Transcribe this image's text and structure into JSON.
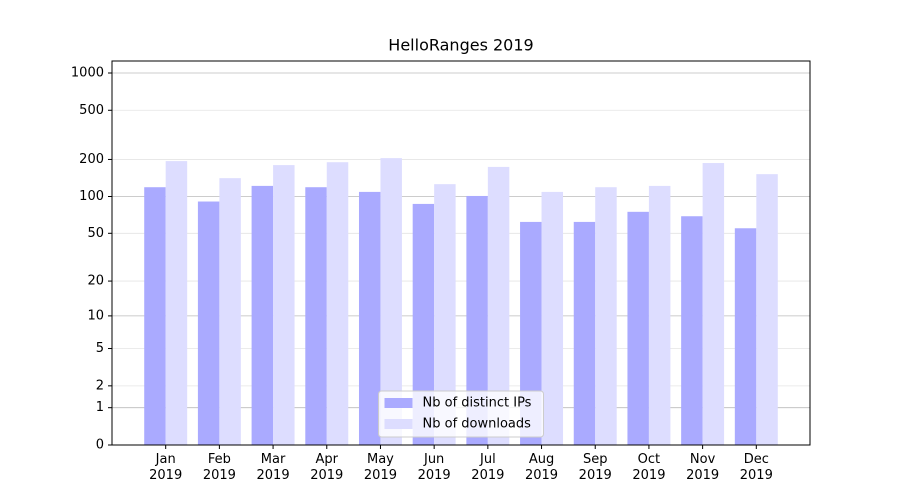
{
  "chart_data": {
    "type": "bar",
    "title": "HelloRanges 2019",
    "yscale": "log1p",
    "categories": [
      "Jan\n2019",
      "Feb\n2019",
      "Mar\n2019",
      "Apr\n2019",
      "May\n2019",
      "Jun\n2019",
      "Jul\n2019",
      "Aug\n2019",
      "Sep\n2019",
      "Oct\n2019",
      "Nov\n2019",
      "Dec\n2019"
    ],
    "series": [
      {
        "name": "Nb of distinct IPs",
        "color": "#aaaaff",
        "values": [
          119,
          91,
          122,
          119,
          109,
          87,
          101,
          62,
          62,
          75,
          69,
          55
        ]
      },
      {
        "name": "Nb of downloads",
        "color": "#ddddff",
        "values": [
          194,
          141,
          180,
          190,
          205,
          126,
          174,
          109,
          119,
          122,
          187,
          152
        ]
      }
    ],
    "ylim": [
      0,
      1250
    ],
    "yticks": [
      0,
      1,
      2,
      5,
      10,
      20,
      50,
      100,
      200,
      500,
      1000
    ],
    "grid": true,
    "legend": "lower center"
  }
}
